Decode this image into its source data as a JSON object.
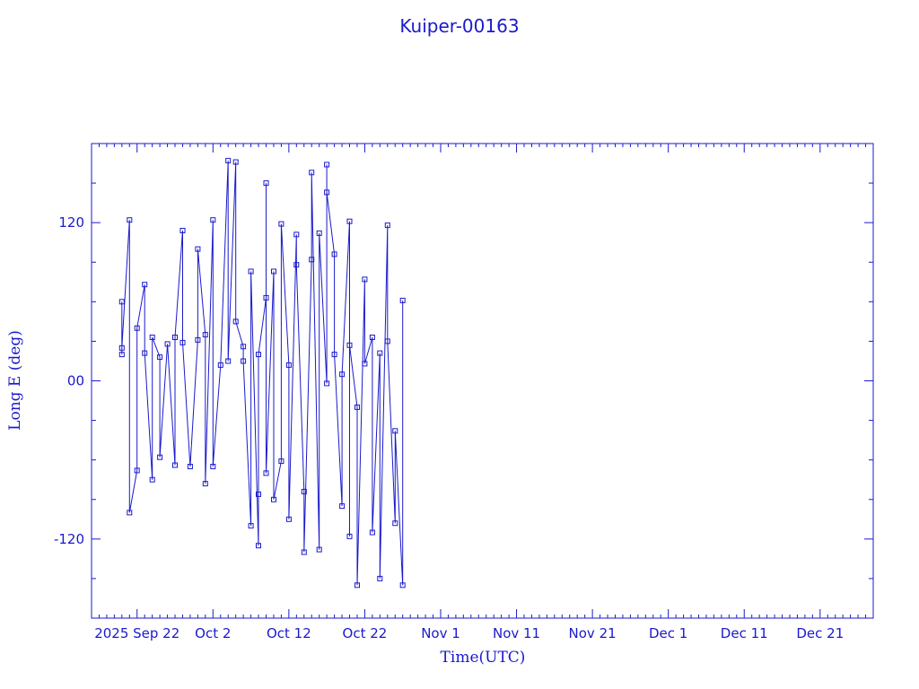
{
  "chart_data": {
    "type": "line",
    "title": "Kuiper-00163",
    "xlabel": "Time(UTC)",
    "ylabel": "Long E (deg)",
    "x_start": "2025-09-16",
    "x_end": "2025-12-28",
    "xticks": [
      {
        "date": "2025-09-22",
        "label": "2025 Sep 22"
      },
      {
        "date": "2025-10-02",
        "label": "Oct  2"
      },
      {
        "date": "2025-10-12",
        "label": "Oct 12"
      },
      {
        "date": "2025-10-22",
        "label": "Oct 22"
      },
      {
        "date": "2025-11-01",
        "label": "Nov  1"
      },
      {
        "date": "2025-11-11",
        "label": "Nov 11"
      },
      {
        "date": "2025-11-21",
        "label": "Nov 21"
      },
      {
        "date": "2025-12-01",
        "label": "Dec  1"
      },
      {
        "date": "2025-12-11",
        "label": "Dec 11"
      },
      {
        "date": "2025-12-21",
        "label": "Dec 21"
      }
    ],
    "ylim": [
      -180,
      180
    ],
    "yticks": [
      {
        "value": 120,
        "label": "120"
      },
      {
        "value": 0,
        "label": "00"
      },
      {
        "value": -120,
        "label": "-120"
      }
    ],
    "grid": false,
    "marker": "square",
    "color": "#1a1acc",
    "series": [
      {
        "values": [
          [
            "2025-09-20",
            20
          ],
          [
            "2025-09-20",
            60
          ],
          [
            "2025-09-20",
            25
          ],
          [
            "2025-09-21",
            122
          ],
          [
            "2025-09-21",
            -100
          ],
          [
            "2025-09-22",
            -68
          ],
          [
            "2025-09-22",
            40
          ],
          [
            "2025-09-23",
            73
          ],
          [
            "2025-09-23",
            21
          ],
          [
            "2025-09-24",
            -75
          ],
          [
            "2025-09-24",
            33
          ],
          [
            "2025-09-25",
            18
          ],
          [
            "2025-09-25",
            -58
          ],
          [
            "2025-09-26",
            28
          ],
          [
            "2025-09-27",
            -64
          ],
          [
            "2025-09-27",
            33
          ],
          [
            "2025-09-28",
            114
          ],
          [
            "2025-09-28",
            29
          ],
          [
            "2025-09-29",
            -65
          ],
          [
            "2025-09-30",
            31
          ],
          [
            "2025-09-30",
            100
          ],
          [
            "2025-10-01",
            35
          ],
          [
            "2025-10-01",
            -78
          ],
          [
            "2025-10-02",
            122
          ],
          [
            "2025-10-02",
            -65
          ],
          [
            "2025-10-03",
            12
          ],
          [
            "2025-10-04",
            167
          ],
          [
            "2025-10-04",
            15
          ],
          [
            "2025-10-05",
            166
          ],
          [
            "2025-10-05",
            45
          ],
          [
            "2025-10-06",
            26
          ],
          [
            "2025-10-06",
            15
          ],
          [
            "2025-10-07",
            -110
          ],
          [
            "2025-10-07",
            83
          ],
          [
            "2025-10-08",
            -125
          ],
          [
            "2025-10-08",
            -86
          ],
          [
            "2025-10-08",
            20
          ],
          [
            "2025-10-09",
            63
          ],
          [
            "2025-10-09",
            150
          ],
          [
            "2025-10-09",
            -70
          ],
          [
            "2025-10-10",
            83
          ],
          [
            "2025-10-10",
            -90
          ],
          [
            "2025-10-11",
            -61
          ],
          [
            "2025-10-11",
            119
          ],
          [
            "2025-10-12",
            12
          ],
          [
            "2025-10-12",
            -105
          ],
          [
            "2025-10-13",
            111
          ],
          [
            "2025-10-13",
            88
          ],
          [
            "2025-10-14",
            -84
          ],
          [
            "2025-10-14",
            -130
          ],
          [
            "2025-10-15",
            92
          ],
          [
            "2025-10-15",
            158
          ],
          [
            "2025-10-16",
            -128
          ],
          [
            "2025-10-16",
            112
          ],
          [
            "2025-10-17",
            -2
          ],
          [
            "2025-10-17",
            164
          ],
          [
            "2025-10-17",
            143
          ],
          [
            "2025-10-18",
            96
          ],
          [
            "2025-10-18",
            20
          ],
          [
            "2025-10-19",
            -95
          ],
          [
            "2025-10-19",
            5
          ],
          [
            "2025-10-20",
            121
          ],
          [
            "2025-10-20",
            -118
          ],
          [
            "2025-10-20",
            27
          ],
          [
            "2025-10-21",
            -20
          ],
          [
            "2025-10-21",
            -155
          ],
          [
            "2025-10-22",
            77
          ],
          [
            "2025-10-22",
            13
          ],
          [
            "2025-10-23",
            33
          ],
          [
            "2025-10-23",
            -115
          ],
          [
            "2025-10-24",
            21
          ],
          [
            "2025-10-24",
            -150
          ],
          [
            "2025-10-25",
            118
          ],
          [
            "2025-10-25",
            30
          ],
          [
            "2025-10-26",
            -108
          ],
          [
            "2025-10-26",
            -38
          ],
          [
            "2025-10-27",
            -155
          ],
          [
            "2025-10-27",
            61
          ]
        ]
      }
    ]
  }
}
